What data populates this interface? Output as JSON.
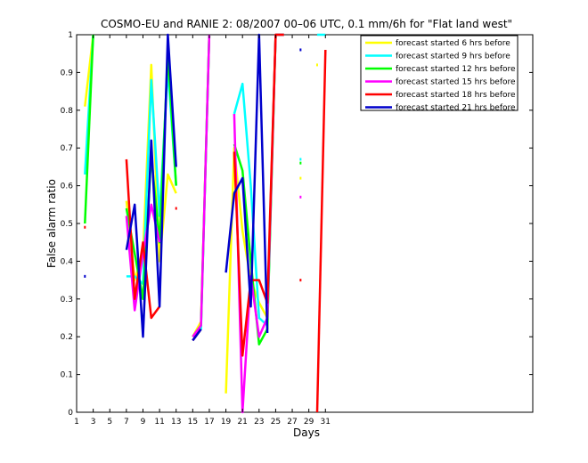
{
  "chart_data": {
    "type": "line",
    "title": "COSMO-EU and RANIE 2: 08/2007 00–06 UTC, 0.1 mm/6h for \"Flat land west\"",
    "xlabel": "Days",
    "ylabel": "False alarm ratio",
    "xlim": [
      1,
      56
    ],
    "ylim": [
      0,
      1
    ],
    "xticks": [
      "1",
      "3",
      "5",
      "7",
      "9",
      "11",
      "13",
      "15",
      "17",
      "19",
      "21",
      "23",
      "25",
      "27",
      "29",
      "31"
    ],
    "yticks": [
      "0",
      "0.1",
      "0.2",
      "0.3",
      "0.4",
      "0.5",
      "0.6",
      "0.7",
      "0.8",
      "0.9",
      "1"
    ],
    "legend_position": "top-right",
    "series": [
      {
        "name": "forecast started 6 hrs before",
        "color": "#ffff00",
        "points": [
          [
            2,
            0.81
          ],
          [
            3,
            1.0
          ],
          [
            7,
            0.56
          ],
          [
            8,
            0.35
          ],
          [
            9,
            0.42
          ],
          [
            10,
            0.92
          ],
          [
            11,
            0.4
          ],
          [
            12,
            0.63
          ],
          [
            13,
            0.58
          ],
          [
            15,
            0.2
          ],
          [
            16,
            0.24
          ],
          [
            17,
            1.0
          ],
          [
            19,
            0.05
          ],
          [
            20,
            0.7
          ],
          [
            21,
            0.48
          ],
          [
            22,
            0.35
          ],
          [
            23,
            0.29
          ],
          [
            24,
            0.25
          ],
          [
            25,
            1.0
          ],
          [
            26,
            1.0
          ],
          [
            28,
            0.62
          ],
          [
            30,
            0.92
          ]
        ]
      },
      {
        "name": "forecast started 9 hrs before",
        "color": "#00ffff",
        "points": [
          [
            2,
            0.63
          ],
          [
            3,
            1.0
          ],
          [
            7,
            0.36
          ],
          [
            8,
            0.36
          ],
          [
            9,
            0.34
          ],
          [
            10,
            0.88
          ],
          [
            11,
            0.52
          ],
          [
            12,
            0.91
          ],
          [
            13,
            0.6
          ],
          [
            15,
            0.19
          ],
          [
            16,
            0.22
          ],
          [
            17,
            1.0
          ],
          [
            20,
            0.79
          ],
          [
            21,
            0.87
          ],
          [
            22,
            0.6
          ],
          [
            23,
            0.25
          ],
          [
            24,
            0.23
          ],
          [
            25,
            1.0
          ],
          [
            26,
            1.0
          ],
          [
            28,
            0.67
          ],
          [
            30,
            1.0
          ],
          [
            31,
            1.0
          ]
        ]
      },
      {
        "name": "forecast started 12 hrs before",
        "color": "#00ff00",
        "points": [
          [
            2,
            0.5
          ],
          [
            3,
            1.0
          ],
          [
            7,
            0.54
          ],
          [
            8,
            0.42
          ],
          [
            9,
            0.3
          ],
          [
            10,
            0.68
          ],
          [
            11,
            0.45
          ],
          [
            12,
            0.95
          ],
          [
            13,
            0.6
          ],
          [
            15,
            0.2
          ],
          [
            16,
            0.23
          ],
          [
            17,
            1.0
          ],
          [
            20,
            0.71
          ],
          [
            21,
            0.64
          ],
          [
            22,
            0.4
          ],
          [
            23,
            0.18
          ],
          [
            24,
            0.22
          ],
          [
            25,
            1.0
          ],
          [
            26,
            1.0
          ],
          [
            28,
            0.66
          ]
        ]
      },
      {
        "name": "forecast started 15 hrs before",
        "color": "#ff00ff",
        "points": [
          [
            7,
            0.52
          ],
          [
            8,
            0.27
          ],
          [
            9,
            0.42
          ],
          [
            10,
            0.55
          ],
          [
            11,
            0.45
          ],
          [
            15,
            0.2
          ],
          [
            16,
            0.23
          ],
          [
            17,
            1.0
          ],
          [
            20,
            0.79
          ],
          [
            21,
            0.0
          ],
          [
            22,
            0.36
          ],
          [
            23,
            0.2
          ],
          [
            24,
            0.25
          ],
          [
            25,
            1.0
          ],
          [
            26,
            1.0
          ],
          [
            28,
            0.57
          ]
        ]
      },
      {
        "name": "forecast started 18 hrs before",
        "color": "#ff0000",
        "points": [
          [
            2,
            0.49
          ],
          [
            7,
            0.67
          ],
          [
            8,
            0.3
          ],
          [
            9,
            0.45
          ],
          [
            10,
            0.25
          ],
          [
            11,
            0.28
          ],
          [
            13,
            0.54
          ],
          [
            15,
            0.19
          ],
          [
            16,
            0.22
          ],
          [
            20,
            0.69
          ],
          [
            21,
            0.15
          ],
          [
            22,
            0.35
          ],
          [
            23,
            0.35
          ],
          [
            24,
            0.29
          ],
          [
            25,
            1.0
          ],
          [
            26,
            1.0
          ],
          [
            28,
            0.35
          ],
          [
            30,
            0.0
          ],
          [
            31,
            0.96
          ]
        ]
      },
      {
        "name": "forecast started 21 hrs before",
        "color": "#0000cc",
        "points": [
          [
            2,
            0.36
          ],
          [
            7,
            0.43
          ],
          [
            8,
            0.55
          ],
          [
            9,
            0.2
          ],
          [
            10,
            0.72
          ],
          [
            11,
            0.28
          ],
          [
            12,
            1.0
          ],
          [
            13,
            0.65
          ],
          [
            15,
            0.19
          ],
          [
            16,
            0.22
          ],
          [
            19,
            0.37
          ],
          [
            20,
            0.58
          ],
          [
            21,
            0.62
          ],
          [
            22,
            0.28
          ],
          [
            23,
            1.0
          ],
          [
            24,
            0.21
          ],
          [
            28,
            0.96
          ]
        ]
      }
    ]
  }
}
